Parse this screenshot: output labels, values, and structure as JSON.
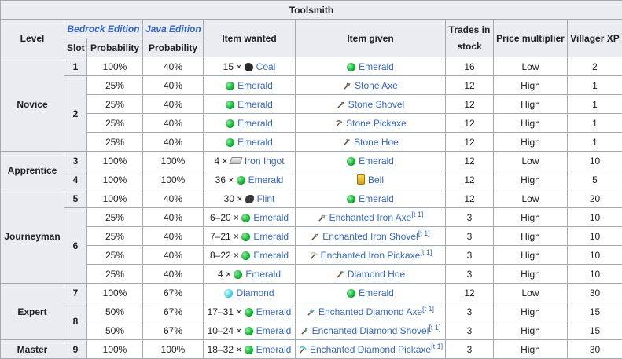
{
  "title": "Toolsmith",
  "headers": {
    "level": "Level",
    "bedrock_edition": "Bedrock Edition",
    "java_edition": "Java Edition",
    "slot": "Slot",
    "probability_bedrock": "Probability",
    "probability_java": "Probability",
    "item_wanted": "Item wanted",
    "item_given": "Item given",
    "trades_in_stock": "Trades in stock",
    "price_multiplier": "Price multiplier",
    "villager_xp": "Villager XP"
  },
  "levels": {
    "novice": "Novice",
    "apprentice": "Apprentice",
    "journeyman": "Journeyman",
    "expert": "Expert",
    "master": "Master"
  },
  "slots": [
    "1",
    "2",
    "3",
    "4",
    "5",
    "6",
    "7",
    "8",
    "9"
  ],
  "icons": {
    "coal": "coal-icon",
    "emerald": "emerald-icon",
    "iron_ingot": "iron-ingot-icon",
    "bell": "bell-icon",
    "flint": "flint-icon",
    "diamond": "diamond-icon",
    "axe": "axe-icon",
    "shovel": "shovel-icon",
    "pickaxe": "pickaxe-icon",
    "hoe": "hoe-icon"
  },
  "colors": {
    "link": "#3366cc",
    "header_bg": "#eaecf0",
    "border": "#a2a9b1"
  },
  "rows": [
    {
      "bedrock_prob": "100%",
      "java_prob": "40%",
      "wanted_qty": "15 × ",
      "wanted": "Coal",
      "given": "Emerald",
      "given_sup": "",
      "stock": "16",
      "price": "Low",
      "xp": "2"
    },
    {
      "bedrock_prob": "25%",
      "java_prob": "40%",
      "wanted_qty": "",
      "wanted": "Emerald",
      "given": "Stone Axe",
      "given_sup": "",
      "stock": "12",
      "price": "High",
      "xp": "1"
    },
    {
      "bedrock_prob": "25%",
      "java_prob": "40%",
      "wanted_qty": "",
      "wanted": "Emerald",
      "given": "Stone Shovel",
      "given_sup": "",
      "stock": "12",
      "price": "High",
      "xp": "1"
    },
    {
      "bedrock_prob": "25%",
      "java_prob": "40%",
      "wanted_qty": "",
      "wanted": "Emerald",
      "given": "Stone Pickaxe",
      "given_sup": "",
      "stock": "12",
      "price": "High",
      "xp": "1"
    },
    {
      "bedrock_prob": "25%",
      "java_prob": "40%",
      "wanted_qty": "",
      "wanted": "Emerald",
      "given": "Stone Hoe",
      "given_sup": "",
      "stock": "12",
      "price": "High",
      "xp": "1"
    },
    {
      "bedrock_prob": "100%",
      "java_prob": "100%",
      "wanted_qty": "4 × ",
      "wanted": "Iron Ingot",
      "given": "Emerald",
      "given_sup": "",
      "stock": "12",
      "price": "Low",
      "xp": "10"
    },
    {
      "bedrock_prob": "100%",
      "java_prob": "100%",
      "wanted_qty": "36 × ",
      "wanted": "Emerald",
      "given": "Bell",
      "given_sup": "",
      "stock": "12",
      "price": "High",
      "xp": "5"
    },
    {
      "bedrock_prob": "100%",
      "java_prob": "40%",
      "wanted_qty": "30 × ",
      "wanted": "Flint",
      "given": "Emerald",
      "given_sup": "",
      "stock": "12",
      "price": "Low",
      "xp": "20"
    },
    {
      "bedrock_prob": "25%",
      "java_prob": "40%",
      "wanted_qty": "6–20 × ",
      "wanted": "Emerald",
      "given": "Enchanted Iron Axe",
      "given_sup": "[t 1]",
      "stock": "3",
      "price": "High",
      "xp": "10"
    },
    {
      "bedrock_prob": "25%",
      "java_prob": "40%",
      "wanted_qty": "7–21 × ",
      "wanted": "Emerald",
      "given": "Enchanted Iron Shovel",
      "given_sup": "[t 1]",
      "stock": "3",
      "price": "High",
      "xp": "10"
    },
    {
      "bedrock_prob": "25%",
      "java_prob": "40%",
      "wanted_qty": "8–22 × ",
      "wanted": "Emerald",
      "given": "Enchanted Iron Pickaxe",
      "given_sup": "[t 1]",
      "stock": "3",
      "price": "High",
      "xp": "10"
    },
    {
      "bedrock_prob": "25%",
      "java_prob": "40%",
      "wanted_qty": "4 × ",
      "wanted": "Emerald",
      "given": "Diamond Hoe",
      "given_sup": "",
      "stock": "3",
      "price": "High",
      "xp": "10"
    },
    {
      "bedrock_prob": "100%",
      "java_prob": "67%",
      "wanted_qty": "",
      "wanted": "Diamond",
      "given": "Emerald",
      "given_sup": "",
      "stock": "12",
      "price": "Low",
      "xp": "30"
    },
    {
      "bedrock_prob": "50%",
      "java_prob": "67%",
      "wanted_qty": "17–31 × ",
      "wanted": "Emerald",
      "given": "Enchanted Diamond Axe",
      "given_sup": "[t 1]",
      "stock": "3",
      "price": "High",
      "xp": "15"
    },
    {
      "bedrock_prob": "50%",
      "java_prob": "67%",
      "wanted_qty": "10–24 × ",
      "wanted": "Emerald",
      "given": "Enchanted Diamond Shovel",
      "given_sup": "[t 1]",
      "stock": "3",
      "price": "High",
      "xp": "15"
    },
    {
      "bedrock_prob": "100%",
      "java_prob": "100%",
      "wanted_qty": "18–32 × ",
      "wanted": "Emerald",
      "given": "Enchanted Diamond Pickaxe",
      "given_sup": "[t 1]",
      "stock": "3",
      "price": "High",
      "xp": "30"
    }
  ]
}
